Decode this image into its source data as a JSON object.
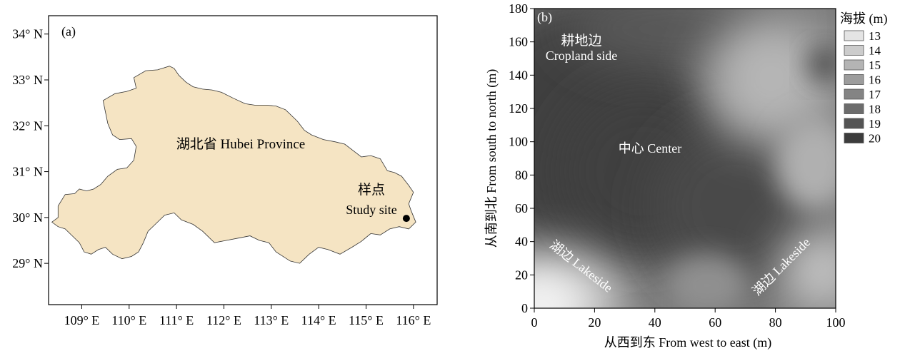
{
  "panel_a": {
    "label": "(a)",
    "province_label": "湖北省 Hubei Province",
    "site_label_cn": "样点",
    "site_label_en": "Study site",
    "lat_ticks": [
      {
        "value": 34,
        "label": "34° N"
      },
      {
        "value": 33,
        "label": "33° N"
      },
      {
        "value": 32,
        "label": "32° N"
      },
      {
        "value": 31,
        "label": "31° N"
      },
      {
        "value": 30,
        "label": "30° N"
      },
      {
        "value": 29,
        "label": "29° N"
      }
    ],
    "lon_ticks": [
      {
        "value": 109,
        "label": "109° E"
      },
      {
        "value": 110,
        "label": "110° E"
      },
      {
        "value": 111,
        "label": "111° E"
      },
      {
        "value": 112,
        "label": "112° E"
      },
      {
        "value": 113,
        "label": "113° E"
      },
      {
        "value": 114,
        "label": "114° E"
      },
      {
        "value": 115,
        "label": "115° E"
      },
      {
        "value": 116,
        "label": "116° E"
      }
    ],
    "lon_range": [
      108.3,
      116.5
    ],
    "lat_range": [
      28.1,
      34.4
    ],
    "study_site": {
      "lon": 115.85,
      "lat": 29.98
    },
    "province_fill": "#f5e4c3",
    "outline": [
      [
        108.37,
        29.9
      ],
      [
        108.5,
        30.0
      ],
      [
        108.5,
        30.25
      ],
      [
        108.65,
        30.5
      ],
      [
        108.85,
        30.52
      ],
      [
        108.95,
        30.62
      ],
      [
        109.1,
        30.58
      ],
      [
        109.25,
        30.62
      ],
      [
        109.4,
        30.72
      ],
      [
        109.55,
        30.9
      ],
      [
        109.75,
        31.05
      ],
      [
        109.95,
        31.08
      ],
      [
        110.1,
        31.25
      ],
      [
        110.15,
        31.55
      ],
      [
        110.05,
        31.72
      ],
      [
        109.8,
        31.7
      ],
      [
        109.65,
        31.8
      ],
      [
        109.55,
        32.05
      ],
      [
        109.5,
        32.3
      ],
      [
        109.45,
        32.55
      ],
      [
        109.7,
        32.7
      ],
      [
        109.95,
        32.75
      ],
      [
        110.15,
        32.82
      ],
      [
        110.1,
        33.05
      ],
      [
        110.35,
        33.2
      ],
      [
        110.6,
        33.22
      ],
      [
        110.85,
        33.3
      ],
      [
        110.95,
        33.25
      ],
      [
        111.05,
        33.1
      ],
      [
        111.2,
        32.95
      ],
      [
        111.35,
        32.85
      ],
      [
        111.55,
        32.8
      ],
      [
        111.75,
        32.78
      ],
      [
        111.95,
        32.73
      ],
      [
        112.2,
        32.6
      ],
      [
        112.45,
        32.48
      ],
      [
        112.65,
        32.45
      ],
      [
        112.9,
        32.45
      ],
      [
        113.1,
        32.43
      ],
      [
        113.3,
        32.35
      ],
      [
        113.55,
        32.1
      ],
      [
        113.7,
        31.9
      ],
      [
        113.85,
        31.8
      ],
      [
        114.1,
        31.7
      ],
      [
        114.35,
        31.65
      ],
      [
        114.55,
        31.6
      ],
      [
        114.7,
        31.48
      ],
      [
        114.9,
        31.32
      ],
      [
        115.1,
        31.35
      ],
      [
        115.3,
        31.28
      ],
      [
        115.45,
        31.02
      ],
      [
        115.6,
        30.98
      ],
      [
        115.75,
        30.9
      ],
      [
        115.9,
        30.7
      ],
      [
        116.0,
        30.55
      ],
      [
        115.9,
        30.3
      ],
      [
        115.95,
        30.15
      ],
      [
        116.05,
        29.9
      ],
      [
        115.9,
        29.75
      ],
      [
        115.7,
        29.8
      ],
      [
        115.5,
        29.75
      ],
      [
        115.3,
        29.62
      ],
      [
        115.1,
        29.65
      ],
      [
        114.9,
        29.48
      ],
      [
        114.7,
        29.35
      ],
      [
        114.45,
        29.2
      ],
      [
        114.2,
        29.3
      ],
      [
        114.0,
        29.35
      ],
      [
        113.8,
        29.2
      ],
      [
        113.6,
        29.0
      ],
      [
        113.4,
        29.05
      ],
      [
        113.1,
        29.25
      ],
      [
        112.95,
        29.45
      ],
      [
        112.75,
        29.5
      ],
      [
        112.55,
        29.6
      ],
      [
        112.3,
        29.55
      ],
      [
        112.05,
        29.5
      ],
      [
        111.8,
        29.45
      ],
      [
        111.55,
        29.7
      ],
      [
        111.35,
        29.85
      ],
      [
        111.1,
        29.95
      ],
      [
        110.95,
        30.1
      ],
      [
        110.75,
        30.05
      ],
      [
        110.55,
        29.85
      ],
      [
        110.4,
        29.7
      ],
      [
        110.3,
        29.45
      ],
      [
        110.2,
        29.25
      ],
      [
        110.05,
        29.15
      ],
      [
        109.85,
        29.1
      ],
      [
        109.65,
        29.2
      ],
      [
        109.5,
        29.35
      ],
      [
        109.35,
        29.3
      ],
      [
        109.2,
        29.2
      ],
      [
        109.05,
        29.25
      ],
      [
        108.95,
        29.45
      ],
      [
        108.8,
        29.6
      ],
      [
        108.65,
        29.75
      ],
      [
        108.5,
        29.8
      ]
    ]
  },
  "panel_b": {
    "label": "(b)",
    "xlabel": "从西到东 From west to east (m)",
    "ylabel": "从南到北 From south to north (m)",
    "x_range": [
      0,
      100
    ],
    "y_range": [
      0,
      180
    ],
    "x_ticks": [
      "0",
      "20",
      "40",
      "60",
      "80",
      "100"
    ],
    "y_ticks": [
      "0",
      "20",
      "40",
      "60",
      "80",
      "100",
      "120",
      "140",
      "160",
      "180"
    ],
    "annotations": {
      "cropland_cn": "耕地边",
      "cropland_en": "Cropland side",
      "center": "中心 Center",
      "lakeside_left": "湖边 Lakeside",
      "lakeside_right": "湖边 Lakeside"
    },
    "legend_title": "海拔 (m)",
    "legend": [
      {
        "label": "13",
        "color": "#e4e4e4"
      },
      {
        "label": "14",
        "color": "#cccccc"
      },
      {
        "label": "15",
        "color": "#b4b4b4"
      },
      {
        "label": "16",
        "color": "#9c9c9c"
      },
      {
        "label": "17",
        "color": "#848484"
      },
      {
        "label": "18",
        "color": "#6c6c6c"
      },
      {
        "label": "19",
        "color": "#545454"
      },
      {
        "label": "20",
        "color": "#3c3c3c"
      }
    ]
  }
}
